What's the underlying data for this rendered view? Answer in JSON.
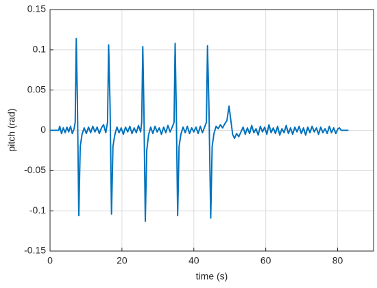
{
  "chart_data": {
    "type": "line",
    "xlabel": "time (s)",
    "ylabel": "pitch (rad)",
    "xlim": [
      0,
      90
    ],
    "xticks": [
      0,
      20,
      40,
      60,
      80
    ],
    "ylim": [
      -0.15,
      0.15
    ],
    "yticks": [
      -0.15,
      -0.1,
      -0.05,
      0,
      0.05,
      0.1,
      0.15
    ],
    "grid": true,
    "series": [
      {
        "color": "#0072BD",
        "x": [
          0,
          2.4,
          2.7,
          3.2,
          3.7,
          4.2,
          4.7,
          5.2,
          5.7,
          6.2,
          6.7,
          7.0,
          7.3,
          7.6,
          8.0,
          8.4,
          8.9,
          9.5,
          10.1,
          10.7,
          11.3,
          11.9,
          12.5,
          13.1,
          13.7,
          14.3,
          14.9,
          15.5,
          16.0,
          16.3,
          16.7,
          17.1,
          17.5,
          18.0,
          18.6,
          19.2,
          19.8,
          20.4,
          21.0,
          21.6,
          22.2,
          22.8,
          23.4,
          24.0,
          24.6,
          25.2,
          25.5,
          25.8,
          26.1,
          26.5,
          26.9,
          27.4,
          28.0,
          28.6,
          29.2,
          29.8,
          30.4,
          31.0,
          31.6,
          32.2,
          32.8,
          33.4,
          34.0,
          34.5,
          34.8,
          35.1,
          35.5,
          35.9,
          36.4,
          37.0,
          37.6,
          38.2,
          38.8,
          39.4,
          40.0,
          40.6,
          41.2,
          41.8,
          42.4,
          43.0,
          43.5,
          43.8,
          44.2,
          44.7,
          45.1,
          45.6,
          46.2,
          46.8,
          47.4,
          48.0,
          48.6,
          49.2,
          49.8,
          50.3,
          50.8,
          51.3,
          51.9,
          52.5,
          53.1,
          53.7,
          54.3,
          54.9,
          55.5,
          56.1,
          56.7,
          57.3,
          57.9,
          58.5,
          59.1,
          59.7,
          60.3,
          60.9,
          61.5,
          62.1,
          62.7,
          63.3,
          63.9,
          64.5,
          65.1,
          65.7,
          66.3,
          66.9,
          67.5,
          68.1,
          68.7,
          69.3,
          69.9,
          70.5,
          71.1,
          71.7,
          72.3,
          72.9,
          73.5,
          74.1,
          74.7,
          75.3,
          75.9,
          76.5,
          77.1,
          77.7,
          78.3,
          78.9,
          79.5,
          80.1,
          80.5,
          81.0,
          83.0
        ],
        "values": [
          0,
          0,
          0.005,
          -0.004,
          0.003,
          -0.003,
          0.004,
          -0.002,
          0.005,
          -0.004,
          0.002,
          0.01,
          0.114,
          0.04,
          -0.106,
          -0.02,
          -0.005,
          0.003,
          -0.004,
          0.004,
          -0.003,
          0.005,
          -0.002,
          0.004,
          -0.004,
          0.003,
          0.007,
          -0.003,
          0.01,
          0.106,
          0.03,
          -0.104,
          -0.02,
          -0.006,
          0.004,
          -0.003,
          0.003,
          -0.005,
          0.004,
          -0.002,
          0.005,
          -0.004,
          0.003,
          -0.003,
          0.006,
          -0.002,
          0.01,
          0.104,
          0.03,
          -0.113,
          -0.025,
          -0.006,
          0.004,
          -0.004,
          0.005,
          -0.002,
          0.003,
          -0.005,
          0.004,
          -0.003,
          0.006,
          -0.002,
          0.004,
          0.01,
          0.108,
          0.03,
          -0.106,
          -0.02,
          -0.005,
          0.004,
          -0.003,
          0.005,
          -0.004,
          0.003,
          -0.002,
          0.004,
          -0.004,
          0.005,
          -0.003,
          0.004,
          0.01,
          0.105,
          0.03,
          -0.109,
          -0.02,
          -0.004,
          0.005,
          0.002,
          0.007,
          0.003,
          0.008,
          0.012,
          0.03,
          0.012,
          -0.005,
          -0.01,
          -0.004,
          -0.008,
          -0.002,
          0.004,
          -0.005,
          0.003,
          -0.004,
          0.006,
          -0.003,
          0.002,
          -0.006,
          0.005,
          -0.002,
          0.004,
          -0.005,
          0.007,
          -0.003,
          0.003,
          -0.004,
          0.005,
          -0.006,
          0.002,
          -0.003,
          0.006,
          -0.004,
          0.003,
          -0.005,
          0.004,
          -0.002,
          0.005,
          -0.004,
          0.003,
          -0.006,
          0.004,
          -0.003,
          0.005,
          -0.002,
          0.003,
          -0.005,
          0.004,
          -0.003,
          0.002,
          -0.004,
          0.005,
          -0.003,
          0.003,
          -0.004,
          0.002,
          0.003,
          0,
          0
        ]
      }
    ]
  }
}
